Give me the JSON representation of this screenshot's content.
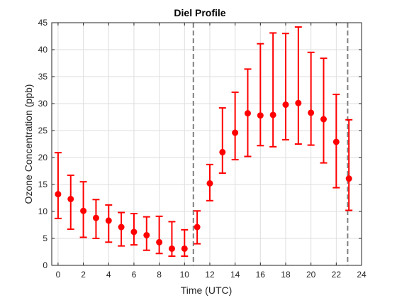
{
  "chart_data": {
    "type": "scatter",
    "title": "Diel Profile",
    "xlabel": "Time (UTC)",
    "ylabel": "Ozone Concentration (ppb)",
    "xlim": [
      -0.5,
      24
    ],
    "ylim": [
      0,
      45
    ],
    "xticks": [
      0,
      2,
      4,
      6,
      8,
      10,
      12,
      14,
      16,
      18,
      20,
      22,
      24
    ],
    "yticks": [
      0,
      5,
      10,
      15,
      20,
      25,
      30,
      35,
      40,
      45
    ],
    "grid": true,
    "marker_color": "#ff0000",
    "vline_color": "#808080",
    "vlines": [
      10.7,
      22.9
    ],
    "series": [
      {
        "x": [
          0,
          1,
          2,
          3,
          4,
          5,
          6,
          7,
          8,
          9,
          10,
          11,
          12,
          13,
          14,
          15,
          16,
          17,
          18,
          19,
          20,
          21,
          22,
          23
        ],
        "y": [
          13.2,
          12.3,
          10.1,
          8.8,
          8.3,
          7.1,
          6.2,
          5.6,
          4.3,
          3.1,
          3.1,
          7.1,
          15.2,
          21.0,
          24.6,
          28.2,
          27.8,
          27.9,
          29.8,
          30.1,
          28.3,
          27.1,
          22.9,
          16.1
        ],
        "lower": [
          8.7,
          6.7,
          5.2,
          5.0,
          4.3,
          3.6,
          3.8,
          2.8,
          2.2,
          1.7,
          1.7,
          4.0,
          12.0,
          17.1,
          19.6,
          20.2,
          22.2,
          22.0,
          23.3,
          22.5,
          22.3,
          19.0,
          14.4,
          10.2
        ],
        "upper": [
          20.9,
          16.7,
          15.5,
          12.2,
          11.2,
          9.8,
          9.6,
          9.0,
          9.1,
          8.1,
          6.6,
          10.1,
          18.7,
          29.2,
          32.1,
          36.4,
          41.1,
          43.1,
          43.0,
          44.2,
          39.5,
          38.4,
          31.7,
          27.0
        ]
      }
    ]
  }
}
